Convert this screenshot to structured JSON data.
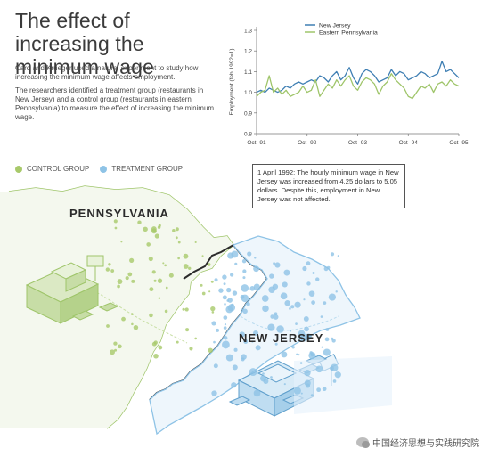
{
  "title": "The effect of increasing the minimum wage",
  "intro": {
    "p1": "Card and Krueger used a natural experiment to study how increasing the minimum wage affects employment.",
    "p2": "The researchers identified a treatment group (restaurants in New Jersey) and a control group (restaurants in eastern Pennsylvania) to measure the effect of increasing the minimum wage."
  },
  "legend": {
    "control_label": "CONTROL GROUP",
    "treatment_label": "TREATMENT GROUP"
  },
  "colors": {
    "control": "#a8c96a",
    "treatment": "#8ec3e6",
    "nj_line": "#3f7fb3",
    "pa_line": "#9fc56a"
  },
  "annotation": "1 April 1992: The hourly minimum wage in New Jersey was increased from 4.25 dollars to 5.05 dollars. Despite this, employment in New Jersey was not affected.",
  "map": {
    "pa_label": "PENNSYLVANIA",
    "nj_label": "NEW JERSEY"
  },
  "watermark": "中国经济思想与实践研究院",
  "chart_data": {
    "type": "line",
    "ylabel": "Employment (feb 1992=1)",
    "xlabel": "",
    "ylim": [
      0.8,
      1.3
    ],
    "yticks": [
      0.8,
      0.9,
      1.0,
      1.1,
      1.2,
      1.3
    ],
    "xlim": [
      0,
      48
    ],
    "xticks": [
      {
        "x": 0,
        "label": "Oct -91"
      },
      {
        "x": 12,
        "label": "Oct -92"
      },
      {
        "x": 24,
        "label": "Oct -93"
      },
      {
        "x": 36,
        "label": "Oct -94"
      },
      {
        "x": 48,
        "label": "Oct -95"
      }
    ],
    "event_x": 6,
    "legend_position": "top-center",
    "series": [
      {
        "name": "New Jersey",
        "values": [
          1.0,
          1.01,
          1.0,
          1.02,
          1.01,
          1.0,
          1.01,
          1.03,
          1.02,
          1.04,
          1.05,
          1.04,
          1.05,
          1.06,
          1.05,
          1.08,
          1.07,
          1.05,
          1.08,
          1.1,
          1.06,
          1.08,
          1.12,
          1.07,
          1.04,
          1.09,
          1.11,
          1.1,
          1.08,
          1.05,
          1.06,
          1.07,
          1.11,
          1.08,
          1.1,
          1.09,
          1.06,
          1.07,
          1.08,
          1.1,
          1.09,
          1.07,
          1.08,
          1.09,
          1.15,
          1.1,
          1.11,
          1.09,
          1.07
        ]
      },
      {
        "name": "Eastern Pennsylvania",
        "values": [
          0.98,
          1.0,
          1.01,
          1.08,
          1.0,
          1.02,
          0.99,
          1.01,
          0.98,
          0.99,
          1.0,
          1.03,
          1.0,
          1.01,
          1.06,
          0.98,
          1.01,
          1.04,
          1.02,
          1.06,
          1.03,
          1.06,
          1.08,
          1.03,
          1.01,
          1.05,
          1.07,
          1.06,
          1.04,
          0.99,
          1.03,
          1.05,
          1.09,
          1.06,
          1.04,
          1.02,
          0.98,
          0.97,
          1.0,
          1.03,
          1.02,
          1.04,
          1.0,
          1.04,
          1.05,
          1.03,
          1.06,
          1.04,
          1.03
        ]
      }
    ]
  }
}
